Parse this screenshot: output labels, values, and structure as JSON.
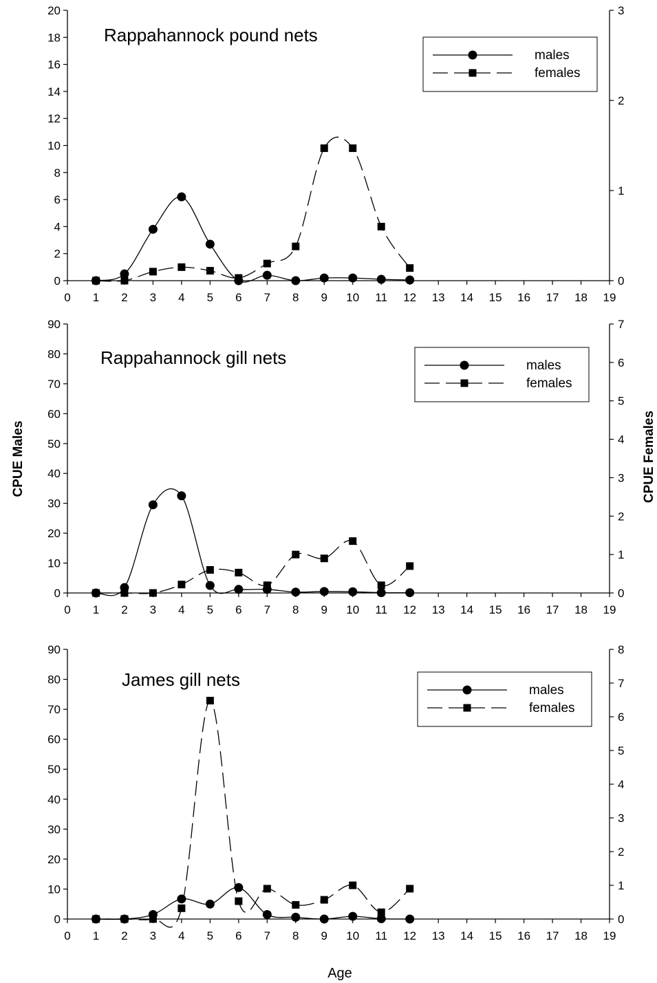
{
  "chart_data": [
    {
      "type": "line",
      "title": "Rappahannock pound nets",
      "x": [
        1,
        2,
        3,
        4,
        5,
        6,
        7,
        8,
        9,
        10,
        11,
        12
      ],
      "xlim": [
        0,
        19
      ],
      "x_ticks": [
        0,
        1,
        2,
        3,
        4,
        5,
        6,
        7,
        8,
        9,
        10,
        11,
        12,
        13,
        14,
        15,
        16,
        17,
        18,
        19
      ],
      "ylim_left": [
        0,
        20
      ],
      "y_ticks_left": [
        0,
        2,
        4,
        6,
        8,
        10,
        12,
        14,
        16,
        18,
        20
      ],
      "ylim_right": [
        0,
        3
      ],
      "y_ticks_right": [
        0,
        1,
        2,
        3
      ],
      "legend_position": "top-right",
      "series": [
        {
          "name": "males",
          "axis": "left",
          "marker": "circle",
          "line_style": "solid",
          "values": [
            0.0,
            0.5,
            3.8,
            6.2,
            2.7,
            0.0,
            0.4,
            0.0,
            0.2,
            0.2,
            0.1,
            0.05
          ]
        },
        {
          "name": "females",
          "axis": "right",
          "marker": "square",
          "line_style": "dashed",
          "values": [
            0.0,
            0.0,
            0.1,
            0.15,
            0.11,
            0.03,
            0.19,
            0.38,
            1.47,
            1.47,
            0.6,
            0.14
          ]
        }
      ]
    },
    {
      "type": "line",
      "title": "Rappahannock gill nets",
      "x": [
        1,
        2,
        3,
        4,
        5,
        6,
        7,
        8,
        9,
        10,
        11,
        12
      ],
      "xlim": [
        0,
        19
      ],
      "x_ticks": [
        0,
        1,
        2,
        3,
        4,
        5,
        6,
        7,
        8,
        9,
        10,
        11,
        12,
        13,
        14,
        15,
        16,
        17,
        18,
        19
      ],
      "ylim_left": [
        0,
        90
      ],
      "y_ticks_left": [
        0,
        10,
        20,
        30,
        40,
        50,
        60,
        70,
        80,
        90
      ],
      "ylim_right": [
        0,
        7
      ],
      "y_ticks_right": [
        0,
        1,
        2,
        3,
        4,
        5,
        6,
        7
      ],
      "legend_position": "top-right",
      "series": [
        {
          "name": "males",
          "axis": "left",
          "marker": "circle",
          "line_style": "solid",
          "values": [
            0.0,
            1.8,
            29.5,
            32.5,
            2.5,
            1.2,
            1.2,
            0.3,
            0.5,
            0.4,
            0.1,
            0.1
          ]
        },
        {
          "name": "females",
          "axis": "right",
          "marker": "square",
          "line_style": "dashed",
          "values": [
            0.0,
            0.0,
            0.0,
            0.22,
            0.6,
            0.53,
            0.2,
            1.0,
            0.9,
            1.35,
            0.2,
            0.7
          ]
        }
      ]
    },
    {
      "type": "line",
      "title": "James gill nets",
      "x": [
        1,
        2,
        3,
        4,
        5,
        6,
        7,
        8,
        9,
        10,
        11,
        12
      ],
      "xlim": [
        0,
        19
      ],
      "x_ticks": [
        0,
        1,
        2,
        3,
        4,
        5,
        6,
        7,
        8,
        9,
        10,
        11,
        12,
        13,
        14,
        15,
        16,
        17,
        18,
        19
      ],
      "ylim_left": [
        0,
        90
      ],
      "y_ticks_left": [
        0,
        10,
        20,
        30,
        40,
        50,
        60,
        70,
        80,
        90
      ],
      "ylim_right": [
        0,
        8
      ],
      "y_ticks_right": [
        0,
        1,
        2,
        3,
        4,
        5,
        6,
        7,
        8
      ],
      "legend_position": "top-right",
      "series": [
        {
          "name": "males",
          "axis": "left",
          "marker": "circle",
          "line_style": "solid",
          "values": [
            0.0,
            0.0,
            1.5,
            6.7,
            5.0,
            10.5,
            1.5,
            0.6,
            0.0,
            0.9,
            0.1,
            0.0
          ]
        },
        {
          "name": "females",
          "axis": "right",
          "marker": "square",
          "line_style": "dashed",
          "values": [
            0.0,
            0.0,
            0.0,
            0.32,
            6.48,
            0.53,
            0.9,
            0.42,
            0.57,
            1.0,
            0.2,
            0.9
          ]
        }
      ]
    }
  ],
  "shared_labels": {
    "y_left": "CPUE Males",
    "y_right": "CPUE Females",
    "x": "Age"
  }
}
